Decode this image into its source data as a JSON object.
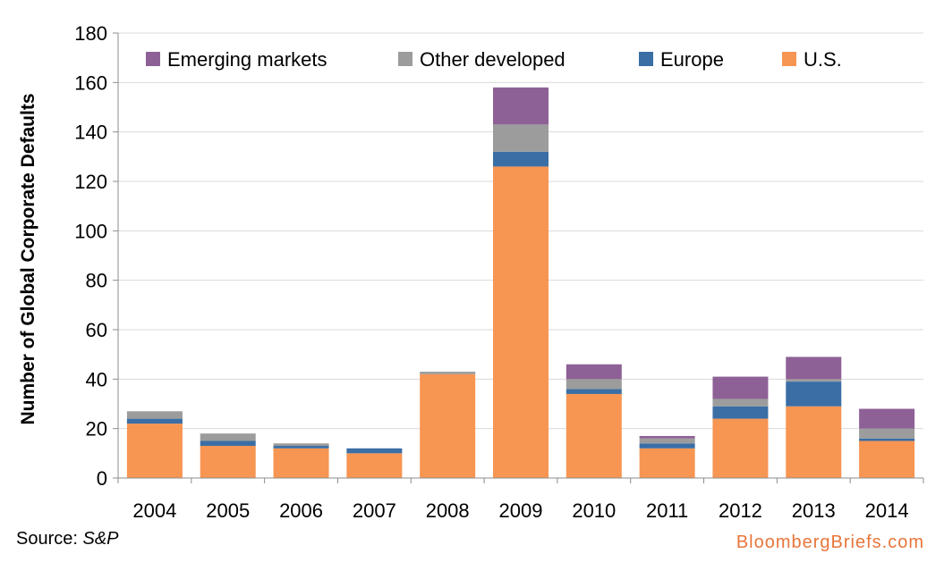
{
  "chart_data": {
    "type": "bar",
    "stacked": true,
    "categories": [
      "2004",
      "2005",
      "2006",
      "2007",
      "2008",
      "2009",
      "2010",
      "2011",
      "2012",
      "2013",
      "2014"
    ],
    "series": [
      {
        "name": "U.S.",
        "color": "#F79552",
        "values": [
          22,
          13,
          12,
          10,
          42,
          126,
          34,
          12,
          24,
          29,
          15
        ]
      },
      {
        "name": "Europe",
        "color": "#3A6EA5",
        "values": [
          2,
          2,
          1,
          2,
          0,
          6,
          2,
          2,
          5,
          10,
          1
        ]
      },
      {
        "name": "Other developed",
        "color": "#9C9C9C",
        "values": [
          3,
          3,
          1,
          0,
          1,
          11,
          4,
          2,
          3,
          1,
          4
        ]
      },
      {
        "name": "Emerging markets",
        "color": "#8E6196",
        "values": [
          0,
          0,
          0,
          0,
          0,
          15,
          6,
          1,
          9,
          9,
          8
        ]
      }
    ],
    "legend_order": [
      "Emerging markets",
      "Other developed",
      "Europe",
      "U.S."
    ],
    "legend_position": "top",
    "title": "",
    "xlabel": "",
    "ylabel": "Number of Global Corporate Defaults",
    "ylim": [
      0,
      180
    ],
    "yticks": [
      0,
      20,
      40,
      60,
      80,
      100,
      120,
      140,
      160,
      180
    ],
    "grid": "horizontal"
  },
  "footer": {
    "source_label": "Source: ",
    "source_name": "S&P",
    "brand": "BloombergBriefs.com",
    "brand_color": "#E8753A"
  }
}
